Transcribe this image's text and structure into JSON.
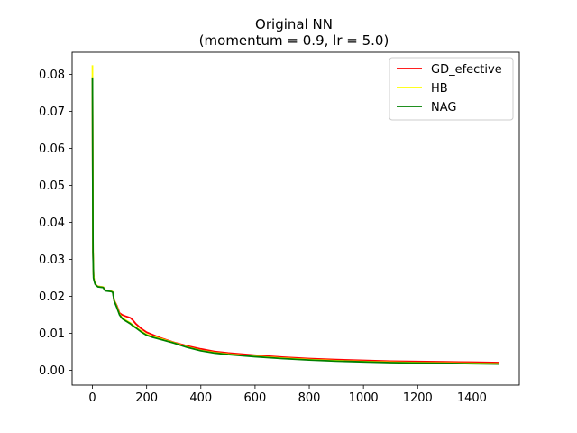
{
  "chart_data": {
    "type": "line",
    "title": "Original NN",
    "subtitle": "(momentum = 0.9, lr = 5.0)",
    "xlabel": "",
    "ylabel": "",
    "xlim": [
      -75,
      1575
    ],
    "ylim": [
      -0.004,
      0.086
    ],
    "xticks": [
      0,
      200,
      400,
      600,
      800,
      1000,
      1200,
      1400
    ],
    "yticks": [
      0.0,
      0.01,
      0.02,
      0.03,
      0.04,
      0.05,
      0.06,
      0.07,
      0.08
    ],
    "grid": false,
    "legend_position": "top-right",
    "series": [
      {
        "name": "GD_efective",
        "color": "#ff0000",
        "x": [
          0,
          1,
          2,
          4,
          6,
          10,
          15,
          20,
          30,
          40,
          45,
          50,
          60,
          70,
          75,
          80,
          90,
          100,
          110,
          120,
          140,
          150,
          160,
          180,
          200,
          220,
          250,
          300,
          350,
          400,
          450,
          500,
          600,
          700,
          800,
          900,
          1000,
          1100,
          1200,
          1300,
          1400,
          1500
        ],
        "y": [
          0.0792,
          0.055,
          0.032,
          0.026,
          0.0245,
          0.0235,
          0.023,
          0.0227,
          0.0226,
          0.0225,
          0.0218,
          0.0216,
          0.0215,
          0.0214,
          0.0212,
          0.019,
          0.0175,
          0.0155,
          0.015,
          0.0147,
          0.0142,
          0.0135,
          0.0126,
          0.0113,
          0.0103,
          0.0097,
          0.0088,
          0.0076,
          0.0066,
          0.0058,
          0.0051,
          0.0047,
          0.0041,
          0.0036,
          0.0032,
          0.0029,
          0.0027,
          0.0025,
          0.0024,
          0.0023,
          0.0022,
          0.0021
        ]
      },
      {
        "name": "HB",
        "color": "#ffff00",
        "x": [
          0,
          1,
          2,
          4,
          6,
          10,
          15,
          20,
          30,
          40,
          45,
          50,
          60,
          70,
          75,
          80,
          90,
          100,
          110,
          120,
          140,
          150,
          160,
          180,
          200,
          220,
          250,
          300,
          350,
          400,
          450,
          500,
          600,
          700,
          800,
          900,
          1000,
          1100,
          1200,
          1300,
          1400,
          1500
        ],
        "y": [
          0.0825,
          0.056,
          0.033,
          0.026,
          0.0245,
          0.0235,
          0.023,
          0.0227,
          0.0226,
          0.0225,
          0.0218,
          0.0216,
          0.0215,
          0.0214,
          0.0212,
          0.019,
          0.0172,
          0.0152,
          0.0142,
          0.0137,
          0.0128,
          0.0122,
          0.0117,
          0.0106,
          0.0097,
          0.0092,
          0.0086,
          0.0075,
          0.0063,
          0.0054,
          0.0048,
          0.0044,
          0.0038,
          0.0033,
          0.0029,
          0.0026,
          0.0024,
          0.0022,
          0.0021,
          0.002,
          0.0019,
          0.0018
        ]
      },
      {
        "name": "NAG",
        "color": "#008000",
        "x": [
          0,
          1,
          2,
          4,
          6,
          10,
          15,
          20,
          30,
          40,
          45,
          50,
          60,
          70,
          75,
          80,
          90,
          100,
          110,
          120,
          140,
          150,
          160,
          180,
          200,
          220,
          250,
          300,
          350,
          400,
          450,
          500,
          600,
          700,
          800,
          900,
          1000,
          1100,
          1200,
          1300,
          1400,
          1500
        ],
        "y": [
          0.0792,
          0.054,
          0.032,
          0.025,
          0.0243,
          0.0233,
          0.0229,
          0.0226,
          0.0225,
          0.0224,
          0.0217,
          0.0215,
          0.0214,
          0.0213,
          0.0211,
          0.0188,
          0.017,
          0.015,
          0.014,
          0.0135,
          0.0126,
          0.012,
          0.0115,
          0.0104,
          0.0095,
          0.009,
          0.0084,
          0.0074,
          0.0062,
          0.0053,
          0.0047,
          0.0043,
          0.0037,
          0.0032,
          0.0028,
          0.0025,
          0.0023,
          0.0021,
          0.002,
          0.0019,
          0.0018,
          0.0017
        ]
      }
    ]
  }
}
